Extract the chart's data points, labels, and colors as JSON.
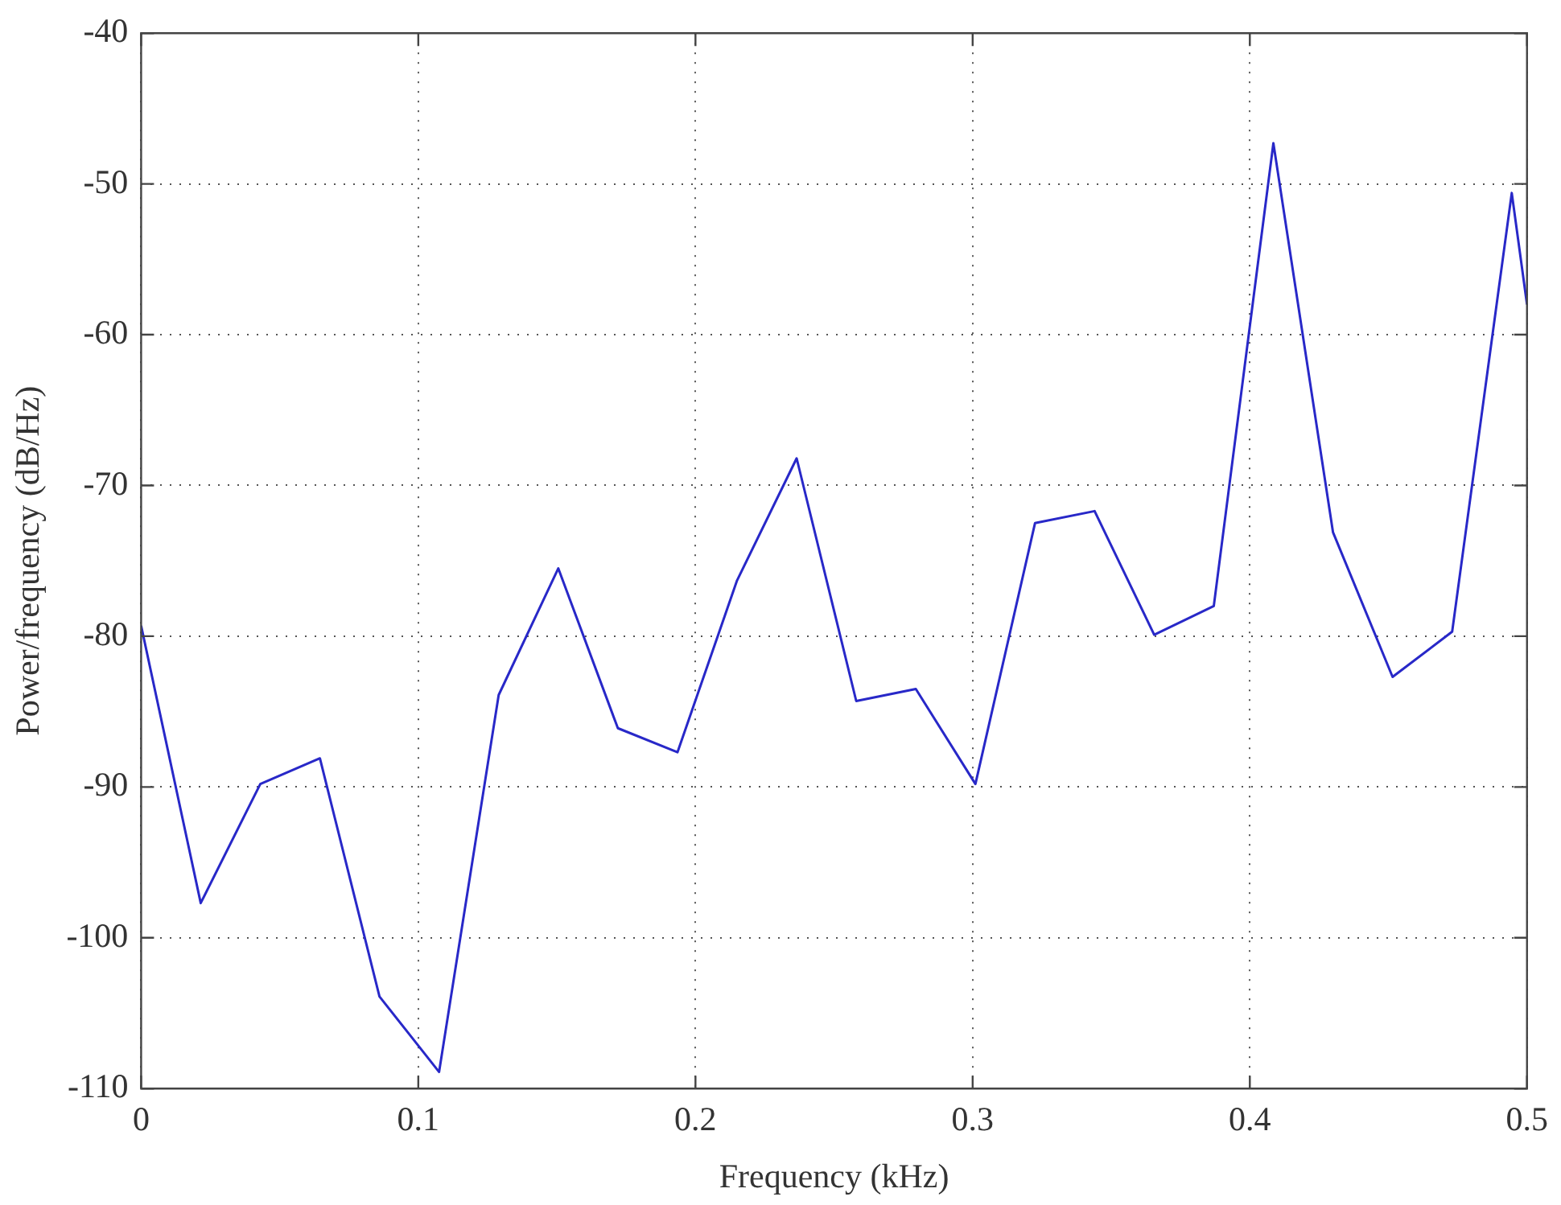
{
  "chart_data": {
    "type": "line",
    "xlabel": "Frequency (kHz)",
    "ylabel": "Power/frequency (dB/Hz)",
    "x": [
      0,
      0.0215,
      0.043,
      0.0645,
      0.086,
      0.1075,
      0.129,
      0.1505,
      0.172,
      0.1935,
      0.215,
      0.2365,
      0.258,
      0.2795,
      0.301,
      0.3225,
      0.344,
      0.3655,
      0.387,
      0.4085,
      0.43,
      0.4515,
      0.473,
      0.4945,
      0.5
    ],
    "series": [
      {
        "color": "#2828c8",
        "values": [
          -79.3,
          -97.7,
          -89.8,
          -88.1,
          -103.9,
          -108.9,
          -83.9,
          -75.5,
          -86.1,
          -87.7,
          -76.3,
          -68.2,
          -84.3,
          -83.5,
          -89.8,
          -72.5,
          -71.7,
          -79.9,
          -78.0,
          -47.3,
          -73.1,
          -82.7,
          -79.7,
          -50.6,
          -58.0
        ]
      }
    ],
    "xlim": [
      0,
      0.5
    ],
    "xticks": [
      0,
      0.1,
      0.2,
      0.3,
      0.4,
      0.5
    ],
    "ylim": [
      -110,
      -40
    ],
    "yticks": [
      -110,
      -100,
      -90,
      -80,
      -70,
      -60,
      -50,
      -40
    ],
    "grid": true,
    "marker": "none",
    "line_style": "solid",
    "legend": false
  }
}
